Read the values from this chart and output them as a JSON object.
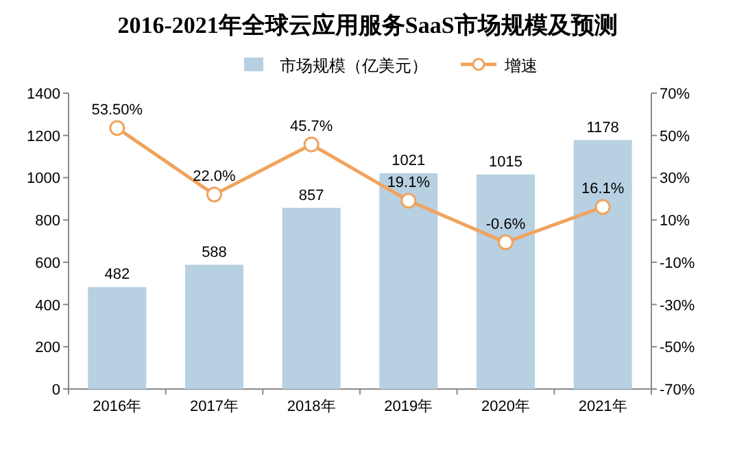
{
  "chart_data": {
    "type": "bar",
    "title": "2016-2021年全球云应用服务SaaS市场规模及预测",
    "categories": [
      "2016年",
      "2017年",
      "2018年",
      "2019年",
      "2020年",
      "2021年"
    ],
    "series": [
      {
        "name": "市场规模（亿美元）",
        "color": "#b7d0e2",
        "values": [
          482,
          588,
          857,
          1021,
          1015,
          1178
        ]
      },
      {
        "name": "增速",
        "type": "line",
        "axis": "y2",
        "color": "#f0a35e",
        "marker": "circle",
        "values": [
          53.5,
          22.0,
          45.7,
          19.1,
          -0.6,
          16.1
        ],
        "value_labels": [
          "53.50%",
          "22.0%",
          "45.7%",
          "19.1%",
          "-0.6%",
          "16.1%"
        ]
      }
    ],
    "data_labels": true,
    "ylim": [
      0,
      1400
    ],
    "yticks": [
      0,
      200,
      400,
      600,
      800,
      1000,
      1200,
      1400
    ],
    "y2lim": [
      -70,
      70
    ],
    "y2ticks": [
      {
        "value": -70,
        "label": "-70%"
      },
      {
        "value": -50,
        "label": "-50%"
      },
      {
        "value": -30,
        "label": "-30%"
      },
      {
        "value": -10,
        "label": "-10%"
      },
      {
        "value": 10,
        "label": "10%"
      },
      {
        "value": 30,
        "label": "30%"
      },
      {
        "value": 50,
        "label": "50%"
      },
      {
        "value": 70,
        "label": "70%"
      }
    ],
    "legend": "top",
    "grid": false
  }
}
